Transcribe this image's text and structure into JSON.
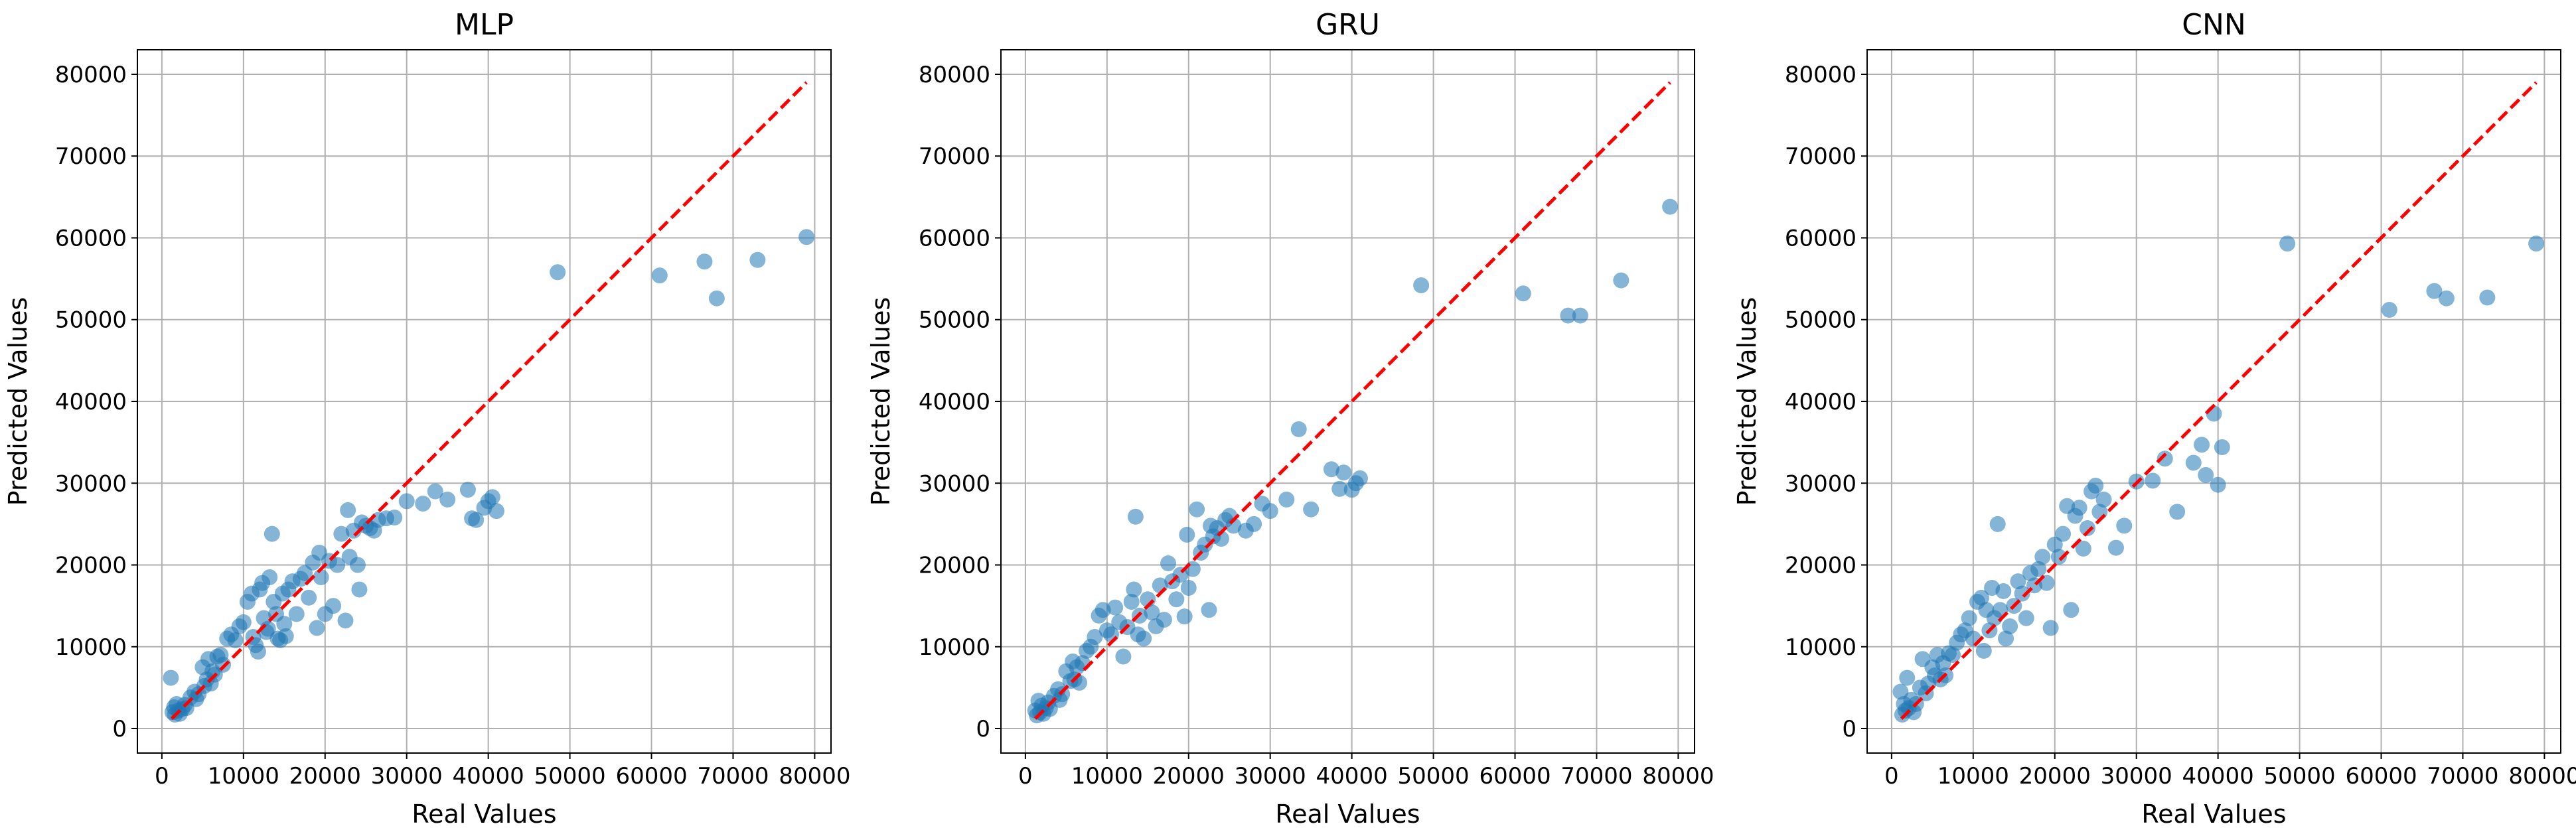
{
  "chart_data": [
    {
      "type": "scatter",
      "title": "MLP",
      "xlabel": "Real Values",
      "ylabel": "Predicted Values",
      "xlim": [
        -3000,
        82000
      ],
      "ylim": [
        -3000,
        83000
      ],
      "xticks": [
        0,
        10000,
        20000,
        30000,
        40000,
        50000,
        60000,
        70000,
        80000
      ],
      "yticks": [
        0,
        10000,
        20000,
        30000,
        40000,
        50000,
        60000,
        70000,
        80000
      ],
      "grid": true,
      "point_color": "#1f77b4",
      "reference_line": {
        "from": [
          1200,
          1200
        ],
        "to": [
          79000,
          79000
        ],
        "color": "#ff0000",
        "style": "dashed"
      },
      "points": [
        [
          1100,
          6200
        ],
        [
          1300,
          2000
        ],
        [
          1500,
          2600
        ],
        [
          1600,
          1700
        ],
        [
          1800,
          3000
        ],
        [
          2000,
          2200
        ],
        [
          2200,
          1800
        ],
        [
          2500,
          2400
        ],
        [
          2800,
          2900
        ],
        [
          3000,
          2500
        ],
        [
          3500,
          3800
        ],
        [
          4000,
          4500
        ],
        [
          4200,
          3600
        ],
        [
          4500,
          4200
        ],
        [
          5000,
          7500
        ],
        [
          5200,
          5200
        ],
        [
          5500,
          6000
        ],
        [
          5700,
          8500
        ],
        [
          6000,
          5500
        ],
        [
          6200,
          7000
        ],
        [
          6500,
          6600
        ],
        [
          6800,
          8800
        ],
        [
          7200,
          9000
        ],
        [
          7500,
          7800
        ],
        [
          8000,
          11000
        ],
        [
          8500,
          11500
        ],
        [
          9000,
          10800
        ],
        [
          9500,
          12500
        ],
        [
          10000,
          13000
        ],
        [
          10500,
          15500
        ],
        [
          11000,
          16500
        ],
        [
          11200,
          11200
        ],
        [
          11500,
          10200
        ],
        [
          11800,
          9400
        ],
        [
          12000,
          17000
        ],
        [
          12300,
          17800
        ],
        [
          12500,
          13500
        ],
        [
          12800,
          11800
        ],
        [
          13000,
          12200
        ],
        [
          13200,
          18500
        ],
        [
          13500,
          23800
        ],
        [
          13700,
          15500
        ],
        [
          14000,
          14000
        ],
        [
          14200,
          11000
        ],
        [
          14500,
          10800
        ],
        [
          14800,
          16500
        ],
        [
          15000,
          12800
        ],
        [
          15200,
          11300
        ],
        [
          15500,
          17000
        ],
        [
          16000,
          18000
        ],
        [
          16500,
          14000
        ],
        [
          17000,
          18300
        ],
        [
          17500,
          19000
        ],
        [
          18000,
          16000
        ],
        [
          18500,
          20300
        ],
        [
          19000,
          12300
        ],
        [
          19300,
          21500
        ],
        [
          19500,
          18500
        ],
        [
          20000,
          14000
        ],
        [
          20500,
          20500
        ],
        [
          21000,
          15000
        ],
        [
          21500,
          20000
        ],
        [
          22000,
          23800
        ],
        [
          22500,
          13200
        ],
        [
          22800,
          26700
        ],
        [
          23000,
          21000
        ],
        [
          23500,
          24200
        ],
        [
          24000,
          20000
        ],
        [
          24200,
          17000
        ],
        [
          24500,
          25200
        ],
        [
          25000,
          24800
        ],
        [
          25500,
          24500
        ],
        [
          26000,
          24200
        ],
        [
          26500,
          25500
        ],
        [
          27500,
          25700
        ],
        [
          28500,
          25800
        ],
        [
          30000,
          27800
        ],
        [
          32000,
          27500
        ],
        [
          33500,
          29000
        ],
        [
          35000,
          28000
        ],
        [
          37500,
          29200
        ],
        [
          38000,
          25700
        ],
        [
          38500,
          25500
        ],
        [
          39500,
          27000
        ],
        [
          40000,
          27800
        ],
        [
          40500,
          28300
        ],
        [
          41000,
          26600
        ],
        [
          48500,
          55800
        ],
        [
          61000,
          55400
        ],
        [
          66500,
          57100
        ],
        [
          68000,
          52600
        ],
        [
          73000,
          57300
        ],
        [
          79000,
          60100
        ]
      ]
    },
    {
      "type": "scatter",
      "title": "GRU",
      "xlabel": "Real Values",
      "ylabel": "Predicted Values",
      "xlim": [
        -3000,
        82000
      ],
      "ylim": [
        -3000,
        83000
      ],
      "xticks": [
        0,
        10000,
        20000,
        30000,
        40000,
        50000,
        60000,
        70000,
        80000
      ],
      "yticks": [
        0,
        10000,
        20000,
        30000,
        40000,
        50000,
        60000,
        70000,
        80000
      ],
      "grid": true,
      "point_color": "#1f77b4",
      "reference_line": {
        "from": [
          1200,
          1200
        ],
        "to": [
          79000,
          79000
        ],
        "color": "#ff0000",
        "style": "dashed"
      },
      "points": [
        [
          1200,
          2200
        ],
        [
          1400,
          1600
        ],
        [
          1600,
          3400
        ],
        [
          1800,
          2000
        ],
        [
          2000,
          2800
        ],
        [
          2200,
          1800
        ],
        [
          2500,
          2500
        ],
        [
          2800,
          3200
        ],
        [
          3000,
          2400
        ],
        [
          3500,
          4000
        ],
        [
          4000,
          4800
        ],
        [
          4200,
          3500
        ],
        [
          4500,
          4200
        ],
        [
          5000,
          7000
        ],
        [
          5500,
          5800
        ],
        [
          5800,
          8200
        ],
        [
          6000,
          6000
        ],
        [
          6300,
          7500
        ],
        [
          6600,
          5600
        ],
        [
          7000,
          8000
        ],
        [
          7500,
          9500
        ],
        [
          8000,
          10000
        ],
        [
          8500,
          11200
        ],
        [
          9000,
          13800
        ],
        [
          9500,
          14500
        ],
        [
          10000,
          12000
        ],
        [
          10500,
          11500
        ],
        [
          11000,
          14800
        ],
        [
          11500,
          13000
        ],
        [
          12000,
          8800
        ],
        [
          12500,
          12400
        ],
        [
          13000,
          15500
        ],
        [
          13300,
          17000
        ],
        [
          13500,
          25900
        ],
        [
          13800,
          11500
        ],
        [
          14000,
          13800
        ],
        [
          14500,
          11000
        ],
        [
          15000,
          15800
        ],
        [
          15500,
          14200
        ],
        [
          16000,
          12500
        ],
        [
          16500,
          17500
        ],
        [
          17000,
          13300
        ],
        [
          17500,
          20200
        ],
        [
          18000,
          18000
        ],
        [
          18500,
          15800
        ],
        [
          19000,
          18800
        ],
        [
          19500,
          13700
        ],
        [
          19800,
          23700
        ],
        [
          20000,
          17200
        ],
        [
          20500,
          19500
        ],
        [
          21000,
          26800
        ],
        [
          21500,
          21500
        ],
        [
          22000,
          22500
        ],
        [
          22500,
          14500
        ],
        [
          22700,
          24800
        ],
        [
          23000,
          23500
        ],
        [
          23500,
          24500
        ],
        [
          24000,
          23200
        ],
        [
          24500,
          25500
        ],
        [
          25000,
          26000
        ],
        [
          25500,
          24800
        ],
        [
          27000,
          24200
        ],
        [
          28000,
          25000
        ],
        [
          29000,
          27500
        ],
        [
          30000,
          26600
        ],
        [
          32000,
          28000
        ],
        [
          33500,
          36600
        ],
        [
          35000,
          26800
        ],
        [
          37500,
          31700
        ],
        [
          38500,
          29300
        ],
        [
          39000,
          31300
        ],
        [
          40000,
          29200
        ],
        [
          40500,
          30000
        ],
        [
          41000,
          30600
        ],
        [
          48500,
          54200
        ],
        [
          61000,
          53200
        ],
        [
          66500,
          50500
        ],
        [
          68000,
          50500
        ],
        [
          73000,
          54800
        ],
        [
          79000,
          63800
        ]
      ]
    },
    {
      "type": "scatter",
      "title": "CNN",
      "xlabel": "Real Values",
      "ylabel": "Predicted Values",
      "xlim": [
        -3000,
        82000
      ],
      "ylim": [
        -3000,
        83000
      ],
      "xticks": [
        0,
        10000,
        20000,
        30000,
        40000,
        50000,
        60000,
        70000,
        80000
      ],
      "yticks": [
        0,
        10000,
        20000,
        30000,
        40000,
        50000,
        60000,
        70000,
        80000
      ],
      "grid": true,
      "point_color": "#1f77b4",
      "reference_line": {
        "from": [
          1200,
          1200
        ],
        "to": [
          79000,
          79000
        ],
        "color": "#ff0000",
        "style": "dashed"
      },
      "points": [
        [
          1100,
          4500
        ],
        [
          1300,
          1700
        ],
        [
          1500,
          3000
        ],
        [
          1700,
          2200
        ],
        [
          1900,
          6200
        ],
        [
          2100,
          2500
        ],
        [
          2400,
          3500
        ],
        [
          2700,
          2000
        ],
        [
          3000,
          3000
        ],
        [
          3500,
          5000
        ],
        [
          3800,
          8500
        ],
        [
          4200,
          4300
        ],
        [
          4500,
          5500
        ],
        [
          5000,
          7500
        ],
        [
          5300,
          6500
        ],
        [
          5600,
          9000
        ],
        [
          6000,
          6000
        ],
        [
          6300,
          8000
        ],
        [
          6600,
          6500
        ],
        [
          7000,
          9200
        ],
        [
          7500,
          9000
        ],
        [
          8000,
          10500
        ],
        [
          8500,
          11500
        ],
        [
          9000,
          12000
        ],
        [
          9500,
          13500
        ],
        [
          10000,
          11000
        ],
        [
          10500,
          15500
        ],
        [
          11000,
          16000
        ],
        [
          11300,
          9500
        ],
        [
          11600,
          14500
        ],
        [
          12000,
          12000
        ],
        [
          12300,
          17200
        ],
        [
          12600,
          13500
        ],
        [
          13000,
          25000
        ],
        [
          13300,
          14500
        ],
        [
          13700,
          16800
        ],
        [
          14000,
          11000
        ],
        [
          14500,
          12500
        ],
        [
          15000,
          15000
        ],
        [
          15500,
          18000
        ],
        [
          16000,
          16500
        ],
        [
          16500,
          13500
        ],
        [
          17000,
          19000
        ],
        [
          17500,
          17500
        ],
        [
          18000,
          19500
        ],
        [
          18500,
          21000
        ],
        [
          19000,
          17800
        ],
        [
          19500,
          12300
        ],
        [
          20000,
          22500
        ],
        [
          20500,
          21000
        ],
        [
          21000,
          23800
        ],
        [
          21500,
          27200
        ],
        [
          22000,
          14500
        ],
        [
          22500,
          26000
        ],
        [
          23000,
          27000
        ],
        [
          23500,
          22000
        ],
        [
          24000,
          24500
        ],
        [
          24500,
          29000
        ],
        [
          25000,
          29700
        ],
        [
          25500,
          26500
        ],
        [
          26000,
          28000
        ],
        [
          27500,
          22100
        ],
        [
          28500,
          24800
        ],
        [
          30000,
          30200
        ],
        [
          32000,
          30300
        ],
        [
          33500,
          33000
        ],
        [
          35000,
          26500
        ],
        [
          37000,
          32500
        ],
        [
          38000,
          34700
        ],
        [
          38500,
          31000
        ],
        [
          39500,
          38500
        ],
        [
          40000,
          29800
        ],
        [
          40500,
          34400
        ],
        [
          48500,
          59300
        ],
        [
          61000,
          51200
        ],
        [
          66500,
          53500
        ],
        [
          68000,
          52600
        ],
        [
          73000,
          52700
        ],
        [
          79000,
          59300
        ]
      ]
    }
  ]
}
